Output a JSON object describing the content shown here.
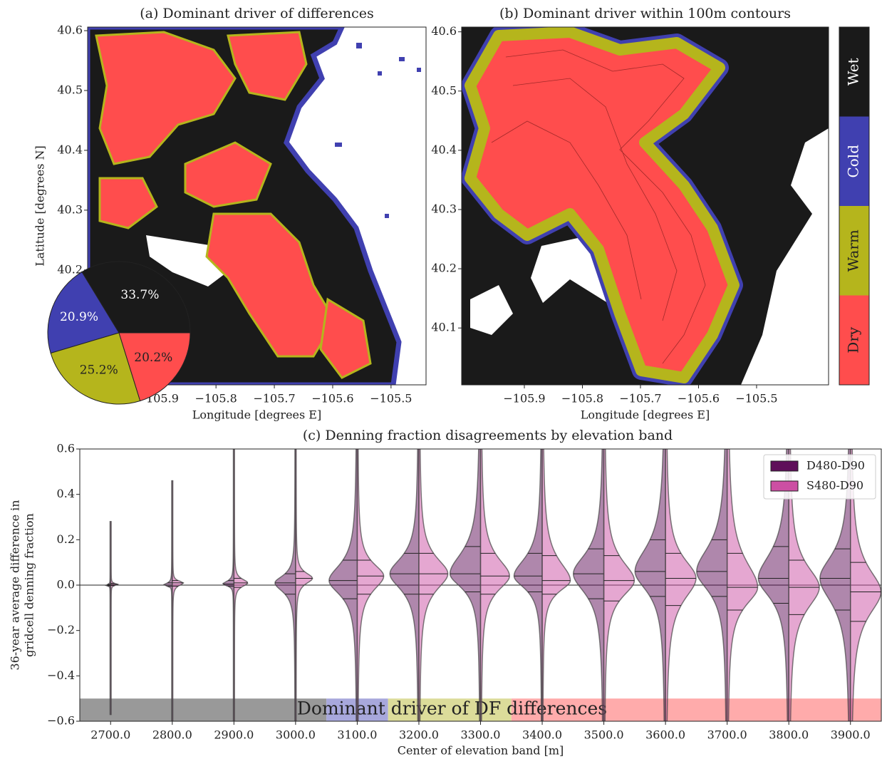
{
  "chart_data": [
    {
      "type": "map",
      "title": "(a) Dominant driver of differences",
      "xlabel": "Longitude [degrees E]",
      "ylabel": "Latitude [degrees N]",
      "xlim": [
        -106.02,
        -105.44
      ],
      "ylim": [
        40.008,
        40.606
      ],
      "xticks": [
        {
          "value": -105.9,
          "label": "−105.9"
        },
        {
          "value": -105.8,
          "label": "−105.8"
        },
        {
          "value": -105.7,
          "label": "−105.7"
        },
        {
          "value": -105.6,
          "label": "−105.6"
        },
        {
          "value": -105.5,
          "label": "−105.5"
        }
      ],
      "yticks": [
        40.2,
        40.3,
        40.4,
        40.5,
        40.6
      ],
      "inset": {
        "type": "pie",
        "values": [
          33.7,
          20.9,
          25.2,
          20.2
        ],
        "value_labels": [
          "33.7%",
          "20.9%",
          "25.2%",
          "20.2%"
        ],
        "colors": [
          "#1a1a1a",
          "#4040b0",
          "#b5b51c",
          "#ff4d4d"
        ]
      }
    },
    {
      "type": "map",
      "title": "(b) Dominant driver within 100m contours",
      "xlabel": "Longitude [degrees E]",
      "xlim": [
        -106.008,
        -105.376
      ],
      "ylim": [
        40.004,
        40.608
      ],
      "xticks": [
        {
          "value": -105.9,
          "label": "−105.9"
        },
        {
          "value": -105.8,
          "label": "−105.8"
        },
        {
          "value": -105.7,
          "label": "−105.7"
        },
        {
          "value": -105.6,
          "label": "−105.6"
        },
        {
          "value": -105.5,
          "label": "−105.5"
        }
      ],
      "yticks": [
        40.1,
        40.2,
        40.3,
        40.4,
        40.5,
        40.6
      ],
      "colorbar": {
        "categories": [
          "Wet",
          "Cold",
          "Warm",
          "Dry"
        ],
        "colors": [
          "#1a1a1a",
          "#4040b0",
          "#b5b51c",
          "#ff4d4d"
        ]
      }
    },
    {
      "type": "violin",
      "title": "(c) Denning fraction disagreements by elevation band",
      "xlabel": "Center of elevation band [m]",
      "ylabel": [
        "36-year average difference in",
        "gridcell denning fraction"
      ],
      "x": [
        2700,
        2800,
        2900,
        3000,
        3100,
        3200,
        3300,
        3400,
        3500,
        3600,
        3700,
        3800,
        3900
      ],
      "xlim": [
        2650,
        3950
      ],
      "ylim": [
        -0.6,
        0.6
      ],
      "xticks": [
        {
          "value": 2700,
          "label": "2700.0"
        },
        {
          "value": 2800,
          "label": "2800.0"
        },
        {
          "value": 2900,
          "label": "2900.0"
        },
        {
          "value": 3000,
          "label": "3000.0"
        },
        {
          "value": 3100,
          "label": "3100.0"
        },
        {
          "value": 3200,
          "label": "3200.0"
        },
        {
          "value": 3300,
          "label": "3300.0"
        },
        {
          "value": 3400,
          "label": "3400.0"
        },
        {
          "value": 3500,
          "label": "3500.0"
        },
        {
          "value": 3600,
          "label": "3600.0"
        },
        {
          "value": 3700,
          "label": "3700.0"
        },
        {
          "value": 3800,
          "label": "3800.0"
        },
        {
          "value": 3900,
          "label": "3900.0"
        }
      ],
      "yticks": [
        {
          "value": -0.6,
          "label": "−0.6"
        },
        {
          "value": -0.4,
          "label": "−0.4"
        },
        {
          "value": -0.2,
          "label": "−0.2"
        },
        {
          "value": 0,
          "label": "0.0"
        },
        0.2,
        0.4,
        0.6
      ],
      "hline": 0,
      "legend": "upper right",
      "bands": [
        {
          "start": 2650,
          "end": 3050,
          "y0": -0.6,
          "y1": -0.5,
          "color": "#999999"
        },
        {
          "start": 3050,
          "end": 3150,
          "y0": -0.6,
          "y1": -0.5,
          "color": "#a8a8dc"
        },
        {
          "start": 3150,
          "end": 3350,
          "y0": -0.6,
          "y1": -0.5,
          "color": "#dcdc9a"
        },
        {
          "start": 3350,
          "end": 3950,
          "y0": -0.6,
          "y1": -0.5,
          "color": "#ffabab"
        }
      ],
      "band_text": "Dominant driver of DF differences",
      "series": [
        {
          "name": "D480-D90",
          "color": "#5f0f5a",
          "stats": [
            {
              "min": -0.57,
              "q1": -0.003,
              "median": 0,
              "q3": 0.003,
              "max": 0.28
            },
            {
              "min": -0.6,
              "q1": -0.005,
              "median": 0,
              "q3": 0.01,
              "max": 0.46
            },
            {
              "min": -0.6,
              "q1": -0.005,
              "median": 0.005,
              "q3": 0.02,
              "max": 0.6
            },
            {
              "min": -0.6,
              "q1": -0.04,
              "median": 0.01,
              "q3": 0.05,
              "max": 0.6
            },
            {
              "min": -0.6,
              "q1": -0.06,
              "median": 0.02,
              "q3": 0.11,
              "max": 0.6
            },
            {
              "min": -0.6,
              "q1": -0.04,
              "median": 0.05,
              "q3": 0.14,
              "max": 0.6
            },
            {
              "min": -0.6,
              "q1": -0.03,
              "median": 0.05,
              "q3": 0.17,
              "max": 0.6
            },
            {
              "min": -0.6,
              "q1": -0.03,
              "median": 0.04,
              "q3": 0.14,
              "max": 0.6
            },
            {
              "min": -0.6,
              "q1": -0.06,
              "median": 0.05,
              "q3": 0.16,
              "max": 0.6
            },
            {
              "min": -0.6,
              "q1": -0.05,
              "median": 0.06,
              "q3": 0.2,
              "max": 0.6
            },
            {
              "min": -0.6,
              "q1": -0.05,
              "median": 0.06,
              "q3": 0.2,
              "max": 0.6
            },
            {
              "min": -0.6,
              "q1": -0.08,
              "median": 0.03,
              "q3": 0.17,
              "max": 0.6
            },
            {
              "min": -0.6,
              "q1": -0.11,
              "median": 0.03,
              "q3": 0.16,
              "max": 0.6
            }
          ]
        },
        {
          "name": "S480-D90",
          "color": "#cc4fa3",
          "stats": [
            {
              "min": -0.57,
              "q1": -0.002,
              "median": 0.003,
              "q3": 0.008,
              "max": 0.28
            },
            {
              "min": -0.6,
              "q1": -0.005,
              "median": 0.01,
              "q3": 0.02,
              "max": 0.46
            },
            {
              "min": -0.6,
              "q1": -0.01,
              "median": 0.01,
              "q3": 0.03,
              "max": 0.6
            },
            {
              "min": -0.6,
              "q1": 0,
              "median": 0.03,
              "q3": 0.06,
              "max": 0.6
            },
            {
              "min": -0.6,
              "q1": -0.04,
              "median": 0.04,
              "q3": 0.11,
              "max": 0.6
            },
            {
              "min": -0.6,
              "q1": -0.04,
              "median": 0.05,
              "q3": 0.14,
              "max": 0.6
            },
            {
              "min": -0.6,
              "q1": -0.04,
              "median": 0.04,
              "q3": 0.14,
              "max": 0.6
            },
            {
              "min": -0.6,
              "q1": -0.04,
              "median": 0.02,
              "q3": 0.13,
              "max": 0.6
            },
            {
              "min": -0.6,
              "q1": -0.07,
              "median": 0.02,
              "q3": 0.13,
              "max": 0.6
            },
            {
              "min": -0.6,
              "q1": -0.09,
              "median": 0.03,
              "q3": 0.14,
              "max": 0.6
            },
            {
              "min": -0.6,
              "q1": -0.11,
              "median": -0.01,
              "q3": 0.14,
              "max": 0.6
            },
            {
              "min": -0.6,
              "q1": -0.13,
              "median": -0.01,
              "q3": 0.11,
              "max": 0.6
            },
            {
              "min": -0.6,
              "q1": -0.16,
              "median": -0.03,
              "q3": 0.1,
              "max": 0.6
            }
          ]
        }
      ]
    }
  ]
}
